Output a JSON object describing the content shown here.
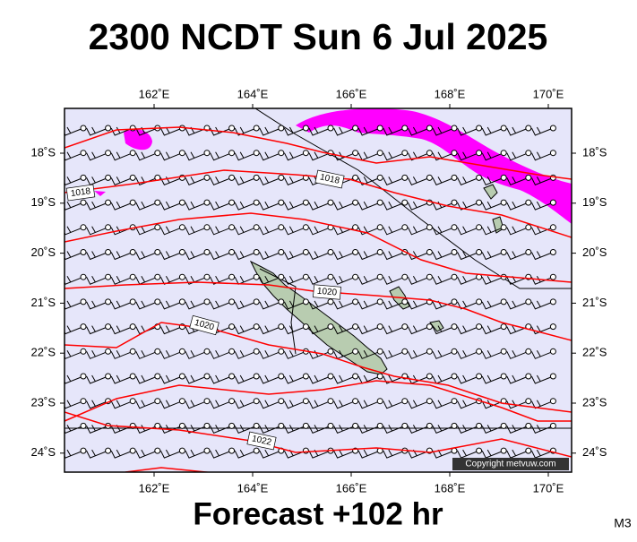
{
  "title": "2300 NCDT Sun 6 Jul 2025",
  "lon_labels": [
    "162˚E",
    "164˚E",
    "166˚E",
    "168˚E",
    "170˚E"
  ],
  "lat_labels": [
    "18˚S",
    "19˚S",
    "20˚S",
    "21˚S",
    "22˚S",
    "23˚S",
    "24˚S"
  ],
  "isobar_labels": [
    "1018",
    "1018",
    "1020",
    "1020",
    "1022"
  ],
  "copyright": "Copyright metvuw.com",
  "footer": "Forecast +102 hr",
  "model": "M3"
}
